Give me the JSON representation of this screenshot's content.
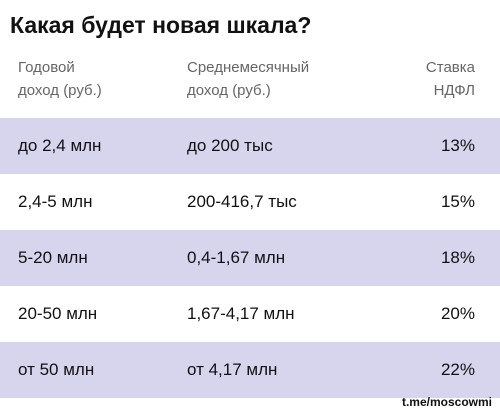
{
  "title": "Какая будет новая шкала?",
  "table": {
    "headers": [
      [
        "Годовой",
        "доход (руб.)"
      ],
      [
        "Среднемесячный",
        "доход (руб.)"
      ],
      [
        "Ставка",
        "НДФЛ"
      ]
    ],
    "rows": [
      [
        "до 2,4 млн",
        "до 200 тыс",
        "13%"
      ],
      [
        "2,4-5 млн",
        "200-416,7 тыс",
        "15%"
      ],
      [
        "5-20 млн",
        "0,4-1,67 млн",
        "18%"
      ],
      [
        "20-50 млн",
        "1,67-4,17 млн",
        "20%"
      ],
      [
        "от 50 млн",
        "от 4,17 млн",
        "22%"
      ]
    ]
  },
  "footer": "t.me/moscowmi"
}
